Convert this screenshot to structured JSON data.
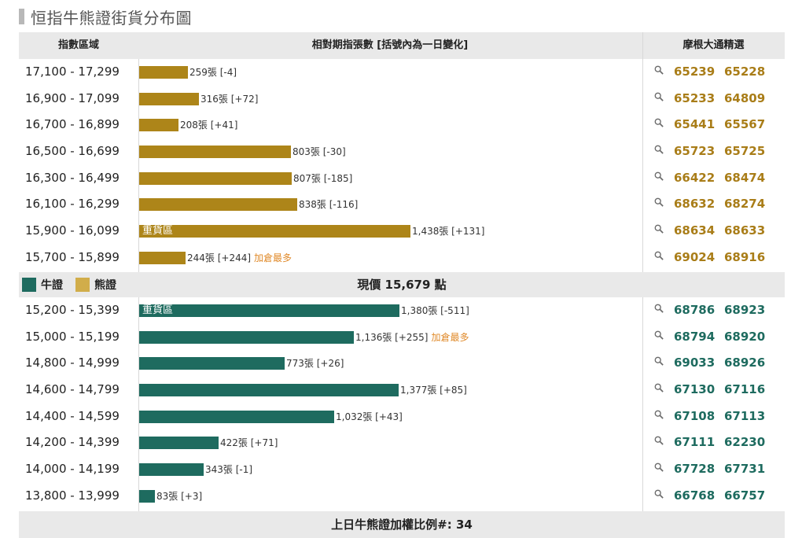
{
  "title": "恒指牛熊證街貨分布圖",
  "header": {
    "range": "指數區域",
    "bars": "相對期指張數 [括號內為一日變化]",
    "picks": "摩根大通精選"
  },
  "colors": {
    "bear": "#ad8519",
    "bull": "#1e6b5f",
    "note": "#e08a2a"
  },
  "icons": {
    "pick_icon": "search-icon"
  },
  "legend": {
    "bull": "牛證",
    "bear": "熊證"
  },
  "current_price": "現價 15,679 點",
  "footer": "上日牛熊證加權比例#: 34",
  "bear_rows": [
    {
      "range": "17,100 - 17,299",
      "value": 259,
      "label": "259張 [-4]",
      "tag": "",
      "note": "",
      "code1": "65239",
      "code2": "65228"
    },
    {
      "range": "16,900 - 17,099",
      "value": 316,
      "label": "316張 [+72]",
      "tag": "",
      "note": "",
      "code1": "65233",
      "code2": "64809"
    },
    {
      "range": "16,700 - 16,899",
      "value": 208,
      "label": "208張 [+41]",
      "tag": "",
      "note": "",
      "code1": "65441",
      "code2": "65567"
    },
    {
      "range": "16,500 - 16,699",
      "value": 803,
      "label": "803張 [-30]",
      "tag": "",
      "note": "",
      "code1": "65723",
      "code2": "65725"
    },
    {
      "range": "16,300 - 16,499",
      "value": 807,
      "label": "807張 [-185]",
      "tag": "",
      "note": "",
      "code1": "66422",
      "code2": "68474"
    },
    {
      "range": "16,100 - 16,299",
      "value": 838,
      "label": "838張 [-116]",
      "tag": "",
      "note": "",
      "code1": "68632",
      "code2": "68274"
    },
    {
      "range": "15,900 - 16,099",
      "value": 1438,
      "label": "1,438張 [+131]",
      "tag": "重貨區",
      "note": "",
      "code1": "68634",
      "code2": "68633"
    },
    {
      "range": "15,700 - 15,899",
      "value": 244,
      "label": "244張 [+244]",
      "tag": "",
      "note": "加倉最多",
      "code1": "69024",
      "code2": "68916"
    }
  ],
  "bull_rows": [
    {
      "range": "15,200 - 15,399",
      "value": 1380,
      "label": "1,380張 [-511]",
      "tag": "重貨區",
      "note": "",
      "code1": "68786",
      "code2": "68923"
    },
    {
      "range": "15,000 - 15,199",
      "value": 1136,
      "label": "1,136張 [+255]",
      "tag": "",
      "note": "加倉最多",
      "code1": "68794",
      "code2": "68920"
    },
    {
      "range": "14,800 - 14,999",
      "value": 773,
      "label": "773張 [+26]",
      "tag": "",
      "note": "",
      "code1": "69033",
      "code2": "68926"
    },
    {
      "range": "14,600 - 14,799",
      "value": 1377,
      "label": "1,377張 [+85]",
      "tag": "",
      "note": "",
      "code1": "67130",
      "code2": "67116"
    },
    {
      "range": "14,400 - 14,599",
      "value": 1032,
      "label": "1,032張 [+43]",
      "tag": "",
      "note": "",
      "code1": "67108",
      "code2": "67113"
    },
    {
      "range": "14,200 - 14,399",
      "value": 422,
      "label": "422張 [+71]",
      "tag": "",
      "note": "",
      "code1": "67111",
      "code2": "62230"
    },
    {
      "range": "14,000 - 14,199",
      "value": 343,
      "label": "343張 [-1]",
      "tag": "",
      "note": "",
      "code1": "67728",
      "code2": "67731"
    },
    {
      "range": "13,800 - 13,999",
      "value": 83,
      "label": "83張 [+3]",
      "tag": "",
      "note": "",
      "code1": "66768",
      "code2": "66757"
    }
  ]
}
